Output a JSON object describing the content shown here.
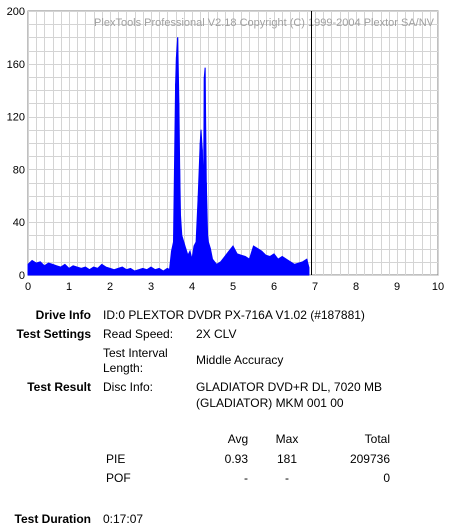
{
  "chart_data": {
    "type": "area",
    "watermark": "PlexTools Professional V2.18 Copyright (C) 1999-2004 Plextor SA/NV",
    "xlim": [
      0,
      10
    ],
    "ylim": [
      0,
      200
    ],
    "x_ticks": [
      "0",
      "1",
      "2",
      "3",
      "4",
      "5",
      "6",
      "7",
      "8",
      "9",
      "10"
    ],
    "y_ticks": [
      "0",
      "40",
      "80",
      "120",
      "160",
      "200"
    ],
    "grid": true,
    "marker_x": 6.9,
    "series_color": "#0000ff",
    "series": [
      {
        "x": [
          0,
          0.1,
          0.2,
          0.3,
          0.4,
          0.5,
          0.6,
          0.7,
          0.8,
          0.9,
          1.0,
          1.1,
          1.2,
          1.3,
          1.4,
          1.5,
          1.6,
          1.7,
          1.8,
          1.9,
          2.0,
          2.1,
          2.2,
          2.3,
          2.4,
          2.5,
          2.6,
          2.7,
          2.8,
          2.9,
          3.0,
          3.1,
          3.2,
          3.3,
          3.4,
          3.45,
          3.5,
          3.55,
          3.6,
          3.62,
          3.65,
          3.68,
          3.7,
          3.72,
          3.75,
          3.8,
          3.85,
          3.9,
          3.95,
          4.0,
          4.05,
          4.1,
          4.15,
          4.2,
          4.22,
          4.25,
          4.28,
          4.3,
          4.32,
          4.35,
          4.38,
          4.4,
          4.45,
          4.5,
          4.6,
          4.7,
          4.8,
          4.9,
          5.0,
          5.1,
          5.2,
          5.3,
          5.4,
          5.5,
          5.6,
          5.7,
          5.8,
          5.9,
          6.0,
          6.1,
          6.2,
          6.3,
          6.4,
          6.5,
          6.6,
          6.7,
          6.8,
          6.85
        ],
        "y": [
          8,
          11,
          9,
          10,
          7,
          9,
          8,
          7,
          6,
          8,
          5,
          7,
          6,
          5,
          6,
          4,
          6,
          5,
          8,
          6,
          5,
          4,
          5,
          6,
          4,
          5,
          3,
          4,
          5,
          4,
          6,
          4,
          5,
          3,
          5,
          4,
          18,
          25,
          145,
          165,
          180,
          130,
          80,
          45,
          30,
          25,
          20,
          15,
          18,
          12,
          22,
          25,
          60,
          100,
          110,
          95,
          60,
          150,
          157,
          70,
          30,
          25,
          20,
          12,
          8,
          10,
          14,
          18,
          22,
          16,
          15,
          14,
          12,
          22,
          20,
          18,
          15,
          14,
          16,
          12,
          14,
          12,
          10,
          8,
          9,
          10,
          12,
          6
        ]
      }
    ]
  },
  "info": {
    "drive_info_label": "Drive Info",
    "drive_info_value": "ID:0 PLEXTOR DVDR PX-716A V1.02 (#187881)",
    "test_settings_label": "Test Settings",
    "read_speed_label": "Read Speed:",
    "read_speed_value": "2X CLV",
    "interval_label_1": "Test Interval",
    "interval_label_2": "Length:",
    "interval_value": "Middle Accuracy",
    "test_result_label": "Test Result",
    "disc_info_label": "Disc Info:",
    "disc_info_line1": "GLADIATOR DVD+R DL, 7020 MB",
    "disc_info_line2": "(GLADIATOR) MKM 001 00",
    "test_duration_label": "Test Duration",
    "test_duration_value": "0:17:07"
  },
  "results": {
    "headers": {
      "avg": "Avg",
      "max": "Max",
      "total": "Total"
    },
    "rows": [
      {
        "name": "PIE",
        "avg": "0.93",
        "max": "181",
        "total": "209736"
      },
      {
        "name": "POF",
        "avg": "-",
        "max": "-",
        "total": "0"
      }
    ]
  }
}
